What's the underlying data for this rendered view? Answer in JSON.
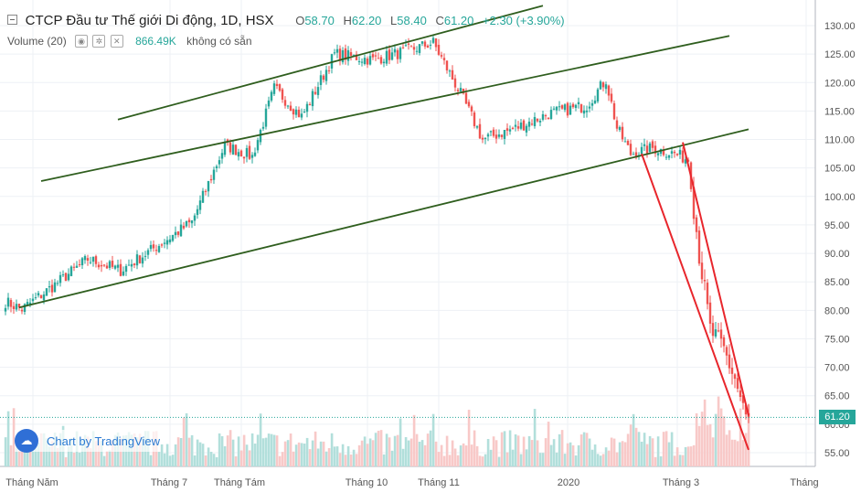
{
  "header": {
    "title": "CTCP Đầu tư Thế giới Di động, 1D, HSX",
    "open_label": "O",
    "open": "58.70",
    "high_label": "H",
    "high": "62.20",
    "low_label": "L",
    "low": "58.40",
    "close_label": "C",
    "close": "61.20",
    "change": "+2.30 (+3.90%)"
  },
  "volume_legend": {
    "label": "Volume (20)",
    "value": "866.49K",
    "status": "không có sẵn",
    "icons": [
      "eye-icon",
      "gear-icon",
      "close-icon"
    ]
  },
  "watermark": "Chart by TradingView",
  "last_price_tag": "61.20",
  "colors": {
    "up": "#26a69a",
    "down": "#ef5350",
    "channel": "#2f5e1e",
    "downtrend": "#e8262c",
    "grid": "#eef1f5"
  },
  "chart_data": {
    "type": "candlestick",
    "title": "CTCP Đầu tư Thế giới Di động, 1D, HSX",
    "y_ticks": [
      55,
      60,
      65,
      70,
      75,
      80,
      85,
      90,
      95,
      100,
      105,
      110,
      115,
      120,
      125,
      130
    ],
    "ylim": [
      52.5,
      132.5
    ],
    "x_ticks": [
      "Tháng Năm",
      "Tháng 7",
      "Tháng Tám",
      "Tháng 10",
      "Tháng 11",
      "2020",
      "Tháng 3",
      "Tháng"
    ],
    "grid": true,
    "close_path_anchors": [
      {
        "i": 0,
        "v": 81.5
      },
      {
        "i": 6,
        "v": 80.2
      },
      {
        "i": 18,
        "v": 84.5
      },
      {
        "i": 30,
        "v": 89.0
      },
      {
        "i": 42,
        "v": 87.0
      },
      {
        "i": 56,
        "v": 91.5
      },
      {
        "i": 68,
        "v": 95.5
      },
      {
        "i": 80,
        "v": 109.0
      },
      {
        "i": 90,
        "v": 107.0
      },
      {
        "i": 98,
        "v": 119.0
      },
      {
        "i": 108,
        "v": 114.0
      },
      {
        "i": 120,
        "v": 125.0
      },
      {
        "i": 134,
        "v": 124.0
      },
      {
        "i": 146,
        "v": 125.5
      },
      {
        "i": 156,
        "v": 127.0
      },
      {
        "i": 166,
        "v": 118.0
      },
      {
        "i": 174,
        "v": 110.0
      },
      {
        "i": 186,
        "v": 112.0
      },
      {
        "i": 198,
        "v": 114.5
      },
      {
        "i": 212,
        "v": 116.0
      },
      {
        "i": 219,
        "v": 120.5
      },
      {
        "i": 223,
        "v": 112.0
      },
      {
        "i": 228,
        "v": 107.5
      },
      {
        "i": 236,
        "v": 108.5
      },
      {
        "i": 244,
        "v": 107.5
      },
      {
        "i": 249,
        "v": 106.5
      },
      {
        "i": 253,
        "v": 90.0
      },
      {
        "i": 257,
        "v": 76.5
      },
      {
        "i": 262,
        "v": 73.0
      },
      {
        "i": 266,
        "v": 68.0
      },
      {
        "i": 270,
        "v": 61.0
      },
      {
        "i": 271,
        "v": 61.2
      }
    ],
    "channel_lines": [
      {
        "name": "upper",
        "from": {
          "i": 41,
          "v": 113.5
        },
        "to": {
          "i": 196,
          "v": 133.5
        }
      },
      {
        "name": "middle",
        "from": {
          "i": 13,
          "v": 102.7
        },
        "to": {
          "i": 264,
          "v": 128.2
        }
      },
      {
        "name": "lower",
        "from": {
          "i": 5,
          "v": 80.5
        },
        "to": {
          "i": 271,
          "v": 111.8
        }
      }
    ],
    "downtrend_lines": [
      {
        "name": "left",
        "from": {
          "i": 232,
          "v": 107.5
        },
        "to": {
          "i": 271,
          "v": 55.5
        }
      },
      {
        "name": "right",
        "from": {
          "i": 247,
          "v": 109.5
        },
        "to": {
          "i": 271,
          "v": 61.5
        }
      }
    ],
    "volume_series": "Volume (20)",
    "last_volume": "866.49K"
  }
}
